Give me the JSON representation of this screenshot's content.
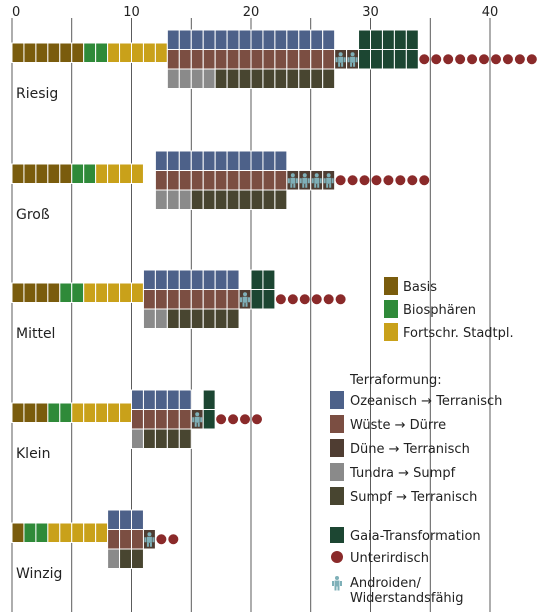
{
  "chart_data": {
    "type": "bar",
    "x_ticks": [
      0,
      10,
      20,
      30,
      40
    ],
    "x_range": [
      0,
      42
    ],
    "grid": true,
    "colors": {
      "basis": "#7a5c0d",
      "biospheres": "#2f8a39",
      "advanced": "#c9a11a",
      "ocean": "#4d6189",
      "desert": "#7b4e42",
      "dune": "#4f3d32",
      "tundra": "#8a8a8a",
      "swamp": "#484530",
      "gaia": "#1c4632",
      "underground": "#8a2a2a",
      "android_icon": "#7fb0b8"
    },
    "planets": [
      {
        "name": "Riesig",
        "basis": 6,
        "biospheres": 2,
        "advanced": 5,
        "terraform_start": 13,
        "ocean": 14,
        "desert": 14,
        "dune": 0,
        "tundra": 4,
        "swamp": 10,
        "android": 2,
        "gaia": 5,
        "underground": 10
      },
      {
        "name": "Groß",
        "basis": 5,
        "biospheres": 2,
        "advanced": 4,
        "terraform_start": 12,
        "ocean": 11,
        "desert": 11,
        "dune": 0,
        "tundra": 3,
        "swamp": 8,
        "android": 4,
        "gaia": 0,
        "underground": 8
      },
      {
        "name": "Mittel",
        "basis": 4,
        "biospheres": 2,
        "advanced": 5,
        "terraform_start": 11,
        "ocean": 8,
        "desert": 8,
        "dune": 0,
        "tundra": 2,
        "swamp": 6,
        "android": 1,
        "gaia": 2,
        "underground": 6
      },
      {
        "name": "Klein",
        "basis": 3,
        "biospheres": 2,
        "advanced": 5,
        "terraform_start": 10,
        "ocean": 5,
        "desert": 5,
        "dune": 0,
        "tundra": 1,
        "swamp": 4,
        "android": 1,
        "gaia": 1,
        "underground": 4
      },
      {
        "name": "Winzig",
        "basis": 1,
        "biospheres": 2,
        "advanced": 5,
        "terraform_start": 8,
        "ocean": 3,
        "desert": 3,
        "dune": 0,
        "tundra": 1,
        "swamp": 2,
        "android": 1,
        "gaia": 0,
        "underground": 2
      }
    ],
    "legend_top": [
      {
        "key": "basis",
        "label": "Basis"
      },
      {
        "key": "biospheres",
        "label": "Biosphären"
      },
      {
        "key": "advanced",
        "label": "Fortschr. Stadtpl."
      }
    ],
    "legend_terraform_title": "Terraformung:",
    "legend_terraform": [
      {
        "key": "ocean",
        "label": "Ozeanisch → Terranisch"
      },
      {
        "key": "desert",
        "label": "Wüste → Dürre"
      },
      {
        "key": "dune",
        "label": "Düne → Terranisch"
      },
      {
        "key": "tundra",
        "label": "Tundra → Sumpf"
      },
      {
        "key": "swamp",
        "label": "Sumpf → Terranisch"
      }
    ],
    "legend_other": [
      {
        "key": "gaia",
        "label": "Gaia-Transformation",
        "shape": "square"
      },
      {
        "key": "underground",
        "label": "Unterirdisch",
        "shape": "circle"
      },
      {
        "key": "android",
        "label": "Androiden/\nWiderstandsfähig",
        "shape": "icon"
      }
    ]
  }
}
